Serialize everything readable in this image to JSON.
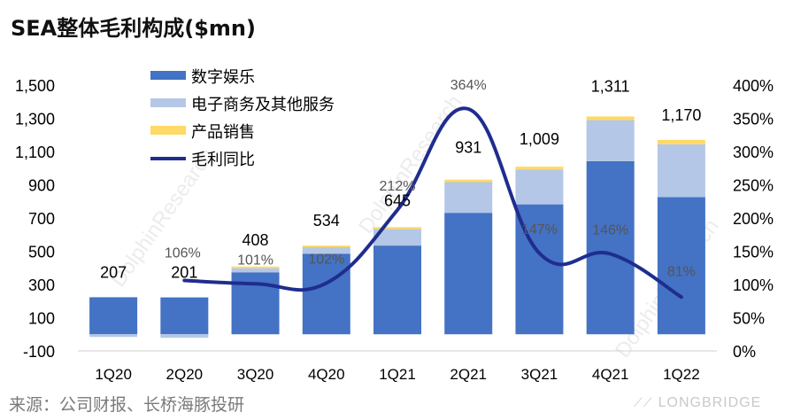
{
  "title": "SEA整体毛利构成($mn)",
  "source": "来源：公司财报、长桥海豚投研",
  "logo": "LONGBRIDGE",
  "watermark": "DolphinResearch",
  "colors": {
    "digital_entertainment": "#4472C4",
    "ecommerce": "#B4C7E7",
    "product_sales": "#FFD966",
    "yoy_line": "#1F2D8F"
  },
  "chart_data": {
    "type": "bar",
    "stacked": true,
    "categories": [
      "1Q20",
      "2Q20",
      "3Q20",
      "4Q20",
      "1Q21",
      "2Q21",
      "3Q21",
      "4Q21",
      "1Q22"
    ],
    "series": [
      {
        "name": "数字娱乐",
        "values": [
          223,
          222,
          372,
          484,
          534,
          731,
          782,
          1042,
          826
        ]
      },
      {
        "name": "电子商务及其他服务",
        "values": [
          -16,
          -21,
          26,
          40,
          99,
          185,
          209,
          247,
          318
        ]
      },
      {
        "name": "产品销售",
        "values": [
          0,
          0,
          10,
          10,
          12,
          15,
          18,
          22,
          26
        ]
      }
    ],
    "totals": [
      207,
      201,
      408,
      534,
      645,
      931,
      1009,
      1311,
      1170
    ],
    "total_labels": [
      "207",
      "201",
      "408",
      "534",
      "645",
      "931",
      "1,009",
      "1,311",
      "1,170"
    ],
    "yoy_line": {
      "name": "毛利同比",
      "values": [
        null,
        106,
        101,
        102,
        212,
        364,
        147,
        146,
        81
      ],
      "labels": [
        "",
        "106%",
        "101%",
        "102%",
        "212%",
        "364%",
        "147%",
        "146%",
        "81%"
      ]
    },
    "left_axis": {
      "min": -100,
      "max": 1500,
      "ticks": [
        "-100",
        "100",
        "300",
        "500",
        "700",
        "900",
        "1,100",
        "1,300",
        "1,500"
      ]
    },
    "right_axis": {
      "min": 0,
      "max": 400,
      "ticks": [
        "0%",
        "50%",
        "100%",
        "150%",
        "200%",
        "250%",
        "300%",
        "350%",
        "400%"
      ]
    },
    "legend": [
      "数字娱乐",
      "电子商务及其他服务",
      "产品销售",
      "毛利同比"
    ],
    "legend_position": "top-left"
  }
}
